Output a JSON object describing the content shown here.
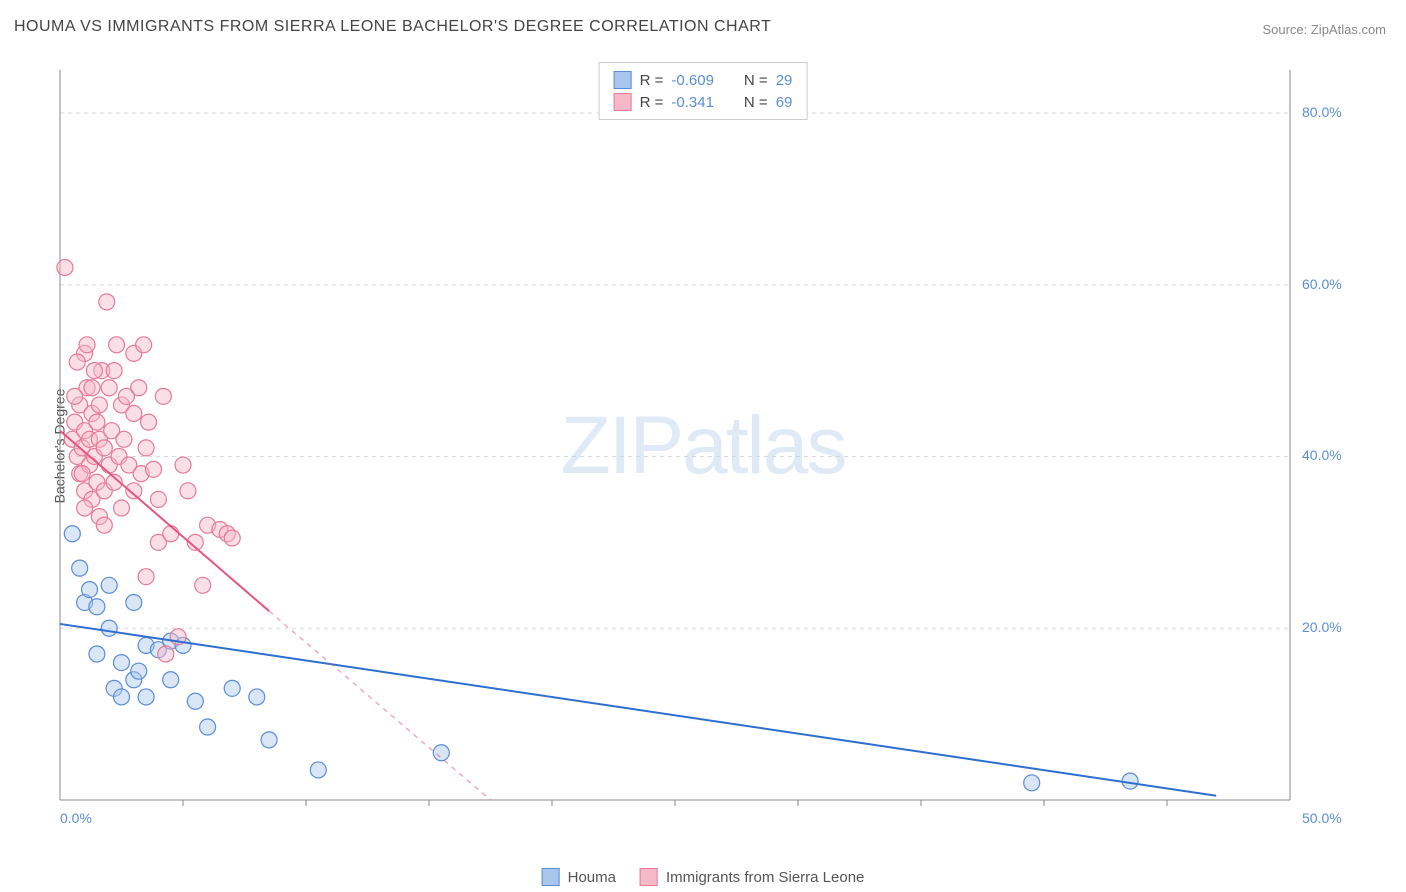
{
  "title": "HOUMA VS IMMIGRANTS FROM SIERRA LEONE BACHELOR'S DEGREE CORRELATION CHART",
  "source": "Source: ZipAtlas.com",
  "watermark": "ZIPatlas",
  "y_axis_label": "Bachelor's Degree",
  "chart": {
    "type": "scatter",
    "xlim": [
      0,
      50
    ],
    "ylim": [
      0,
      85
    ],
    "x_ticks": [
      0,
      50
    ],
    "x_tick_labels": [
      "0.0%",
      "50.0%"
    ],
    "y_ticks": [
      20,
      40,
      60,
      80
    ],
    "y_tick_labels": [
      "20.0%",
      "40.0%",
      "60.0%",
      "80.0%"
    ],
    "x_minor_ticks": [
      5,
      10,
      15,
      20,
      25,
      30,
      35,
      40,
      45
    ],
    "grid_color": "#d9d9d9",
    "axis_color": "#888888",
    "tick_label_color": "#5b8dd6",
    "background_color": "#ffffff",
    "marker_radius": 8,
    "marker_opacity": 0.45,
    "line_width": 2
  },
  "series": [
    {
      "name": "Houma",
      "color_fill": "#a9c7ec",
      "color_stroke": "#5b8dd6",
      "line_color": "#2d6fd0",
      "R": "-0.609",
      "N": "29",
      "trend": {
        "x1": 0,
        "y1": 20.5,
        "x2": 47,
        "y2": 0.5
      },
      "points": [
        [
          0.5,
          31
        ],
        [
          0.8,
          27
        ],
        [
          1.0,
          23
        ],
        [
          1.2,
          24.5
        ],
        [
          1.5,
          22.5
        ],
        [
          1.5,
          17
        ],
        [
          2.0,
          25
        ],
        [
          2.0,
          20
        ],
        [
          2.2,
          13
        ],
        [
          2.5,
          16
        ],
        [
          2.5,
          12
        ],
        [
          3.0,
          23
        ],
        [
          3.0,
          14
        ],
        [
          3.2,
          15
        ],
        [
          3.5,
          18
        ],
        [
          3.5,
          12
        ],
        [
          4.0,
          17.5
        ],
        [
          4.5,
          18.5
        ],
        [
          4.5,
          14
        ],
        [
          5.0,
          18
        ],
        [
          5.5,
          11.5
        ],
        [
          6.0,
          8.5
        ],
        [
          7.0,
          13
        ],
        [
          8.0,
          12
        ],
        [
          8.5,
          7
        ],
        [
          10.5,
          3.5
        ],
        [
          15.5,
          5.5
        ],
        [
          39.5,
          2
        ],
        [
          43.5,
          2.2
        ]
      ]
    },
    {
      "name": "Immigrants from Sierra Leone",
      "color_fill": "#f5b9c8",
      "color_stroke": "#e77a97",
      "line_color": "#e3567f",
      "R": "-0.341",
      "N": "69",
      "trend_solid": {
        "x1": 0,
        "y1": 43,
        "x2": 8.5,
        "y2": 22
      },
      "trend_dash": {
        "x1": 8.5,
        "y1": 22,
        "x2": 17.5,
        "y2": 0
      },
      "points": [
        [
          0.2,
          62
        ],
        [
          0.5,
          42
        ],
        [
          0.6,
          44
        ],
        [
          0.7,
          40
        ],
        [
          0.8,
          46
        ],
        [
          0.8,
          38
        ],
        [
          0.9,
          41
        ],
        [
          1.0,
          52
        ],
        [
          1.0,
          43
        ],
        [
          1.0,
          36
        ],
        [
          1.1,
          48
        ],
        [
          1.2,
          39
        ],
        [
          1.2,
          42
        ],
        [
          1.3,
          45
        ],
        [
          1.3,
          35
        ],
        [
          1.4,
          40
        ],
        [
          1.5,
          44
        ],
        [
          1.5,
          37
        ],
        [
          1.6,
          42
        ],
        [
          1.6,
          33
        ],
        [
          1.7,
          50
        ],
        [
          1.8,
          41
        ],
        [
          1.8,
          36
        ],
        [
          1.9,
          58
        ],
        [
          2.0,
          48
        ],
        [
          2.0,
          39
        ],
        [
          2.1,
          43
        ],
        [
          2.2,
          37
        ],
        [
          2.3,
          53
        ],
        [
          2.4,
          40
        ],
        [
          2.5,
          46
        ],
        [
          2.5,
          34
        ],
        [
          2.6,
          42
        ],
        [
          2.8,
          39
        ],
        [
          3.0,
          52
        ],
        [
          3.0,
          45
        ],
        [
          3.0,
          36
        ],
        [
          3.2,
          48
        ],
        [
          3.3,
          38
        ],
        [
          3.4,
          53
        ],
        [
          3.5,
          41
        ],
        [
          3.5,
          26
        ],
        [
          3.6,
          44
        ],
        [
          3.8,
          38.5
        ],
        [
          4.0,
          35
        ],
        [
          4.0,
          30
        ],
        [
          4.2,
          47
        ],
        [
          4.5,
          31
        ],
        [
          4.8,
          19
        ],
        [
          5.0,
          39
        ],
        [
          5.2,
          36
        ],
        [
          5.5,
          30
        ],
        [
          5.8,
          25
        ],
        [
          6.0,
          32
        ],
        [
          6.5,
          31.5
        ],
        [
          6.8,
          31
        ],
        [
          7.0,
          30.5
        ],
        [
          0.7,
          51
        ],
        [
          1.1,
          53
        ],
        [
          1.4,
          50
        ],
        [
          0.9,
          38
        ],
        [
          1.6,
          46
        ],
        [
          2.2,
          50
        ],
        [
          2.7,
          47
        ],
        [
          1.3,
          48
        ],
        [
          0.6,
          47
        ],
        [
          1.0,
          34
        ],
        [
          1.8,
          32
        ],
        [
          4.3,
          17
        ]
      ]
    }
  ],
  "legend_bottom": [
    {
      "label": "Houma",
      "fill": "#a9c7ec",
      "stroke": "#5b8dd6"
    },
    {
      "label": "Immigrants from Sierra Leone",
      "fill": "#f5b9c8",
      "stroke": "#e77a97"
    }
  ],
  "legend_top_labels": {
    "R": "R =",
    "N": "N ="
  }
}
